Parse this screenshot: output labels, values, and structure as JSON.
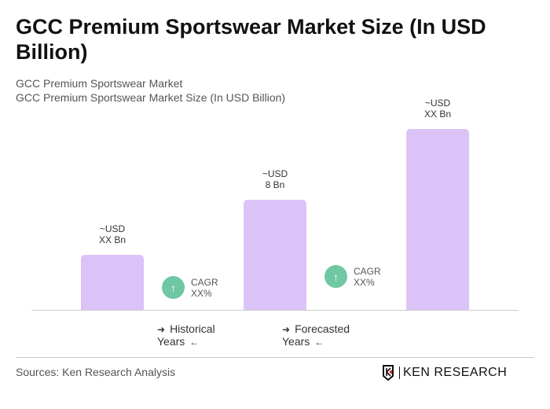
{
  "title": "GCC Premium Sportswear Market Size (In USD Billion)",
  "subtitle1": "GCC Premium Sportswear Market",
  "subtitle2": "GCC Premium Sportswear Market Size (In USD Billion)",
  "chart_data": {
    "type": "bar",
    "values": [
      null,
      8,
      null
    ],
    "bar_labels": [
      {
        "l1": "~USD",
        "l2": "XX Bn"
      },
      {
        "l1": "~USD",
        "l2": "8 Bn"
      },
      {
        "l1": "~USD",
        "l2": "XX Bn"
      }
    ],
    "cagr": [
      {
        "label": "CAGR",
        "value": "XX%"
      },
      {
        "label": "CAGR",
        "value": "XX%"
      }
    ],
    "legend": [
      "Historical Years",
      "Forecasted Years"
    ],
    "bar_color": "#dcc3f7",
    "cagr_color": "#6fc7a3"
  },
  "icons": {
    "cagr": "arrow-up-icon",
    "legend_left": "arrow-right-icon",
    "legend_right": "arrow-left-icon"
  },
  "sources": "Sources: Ken Research Analysis",
  "logo": "KEN RESEARCH"
}
